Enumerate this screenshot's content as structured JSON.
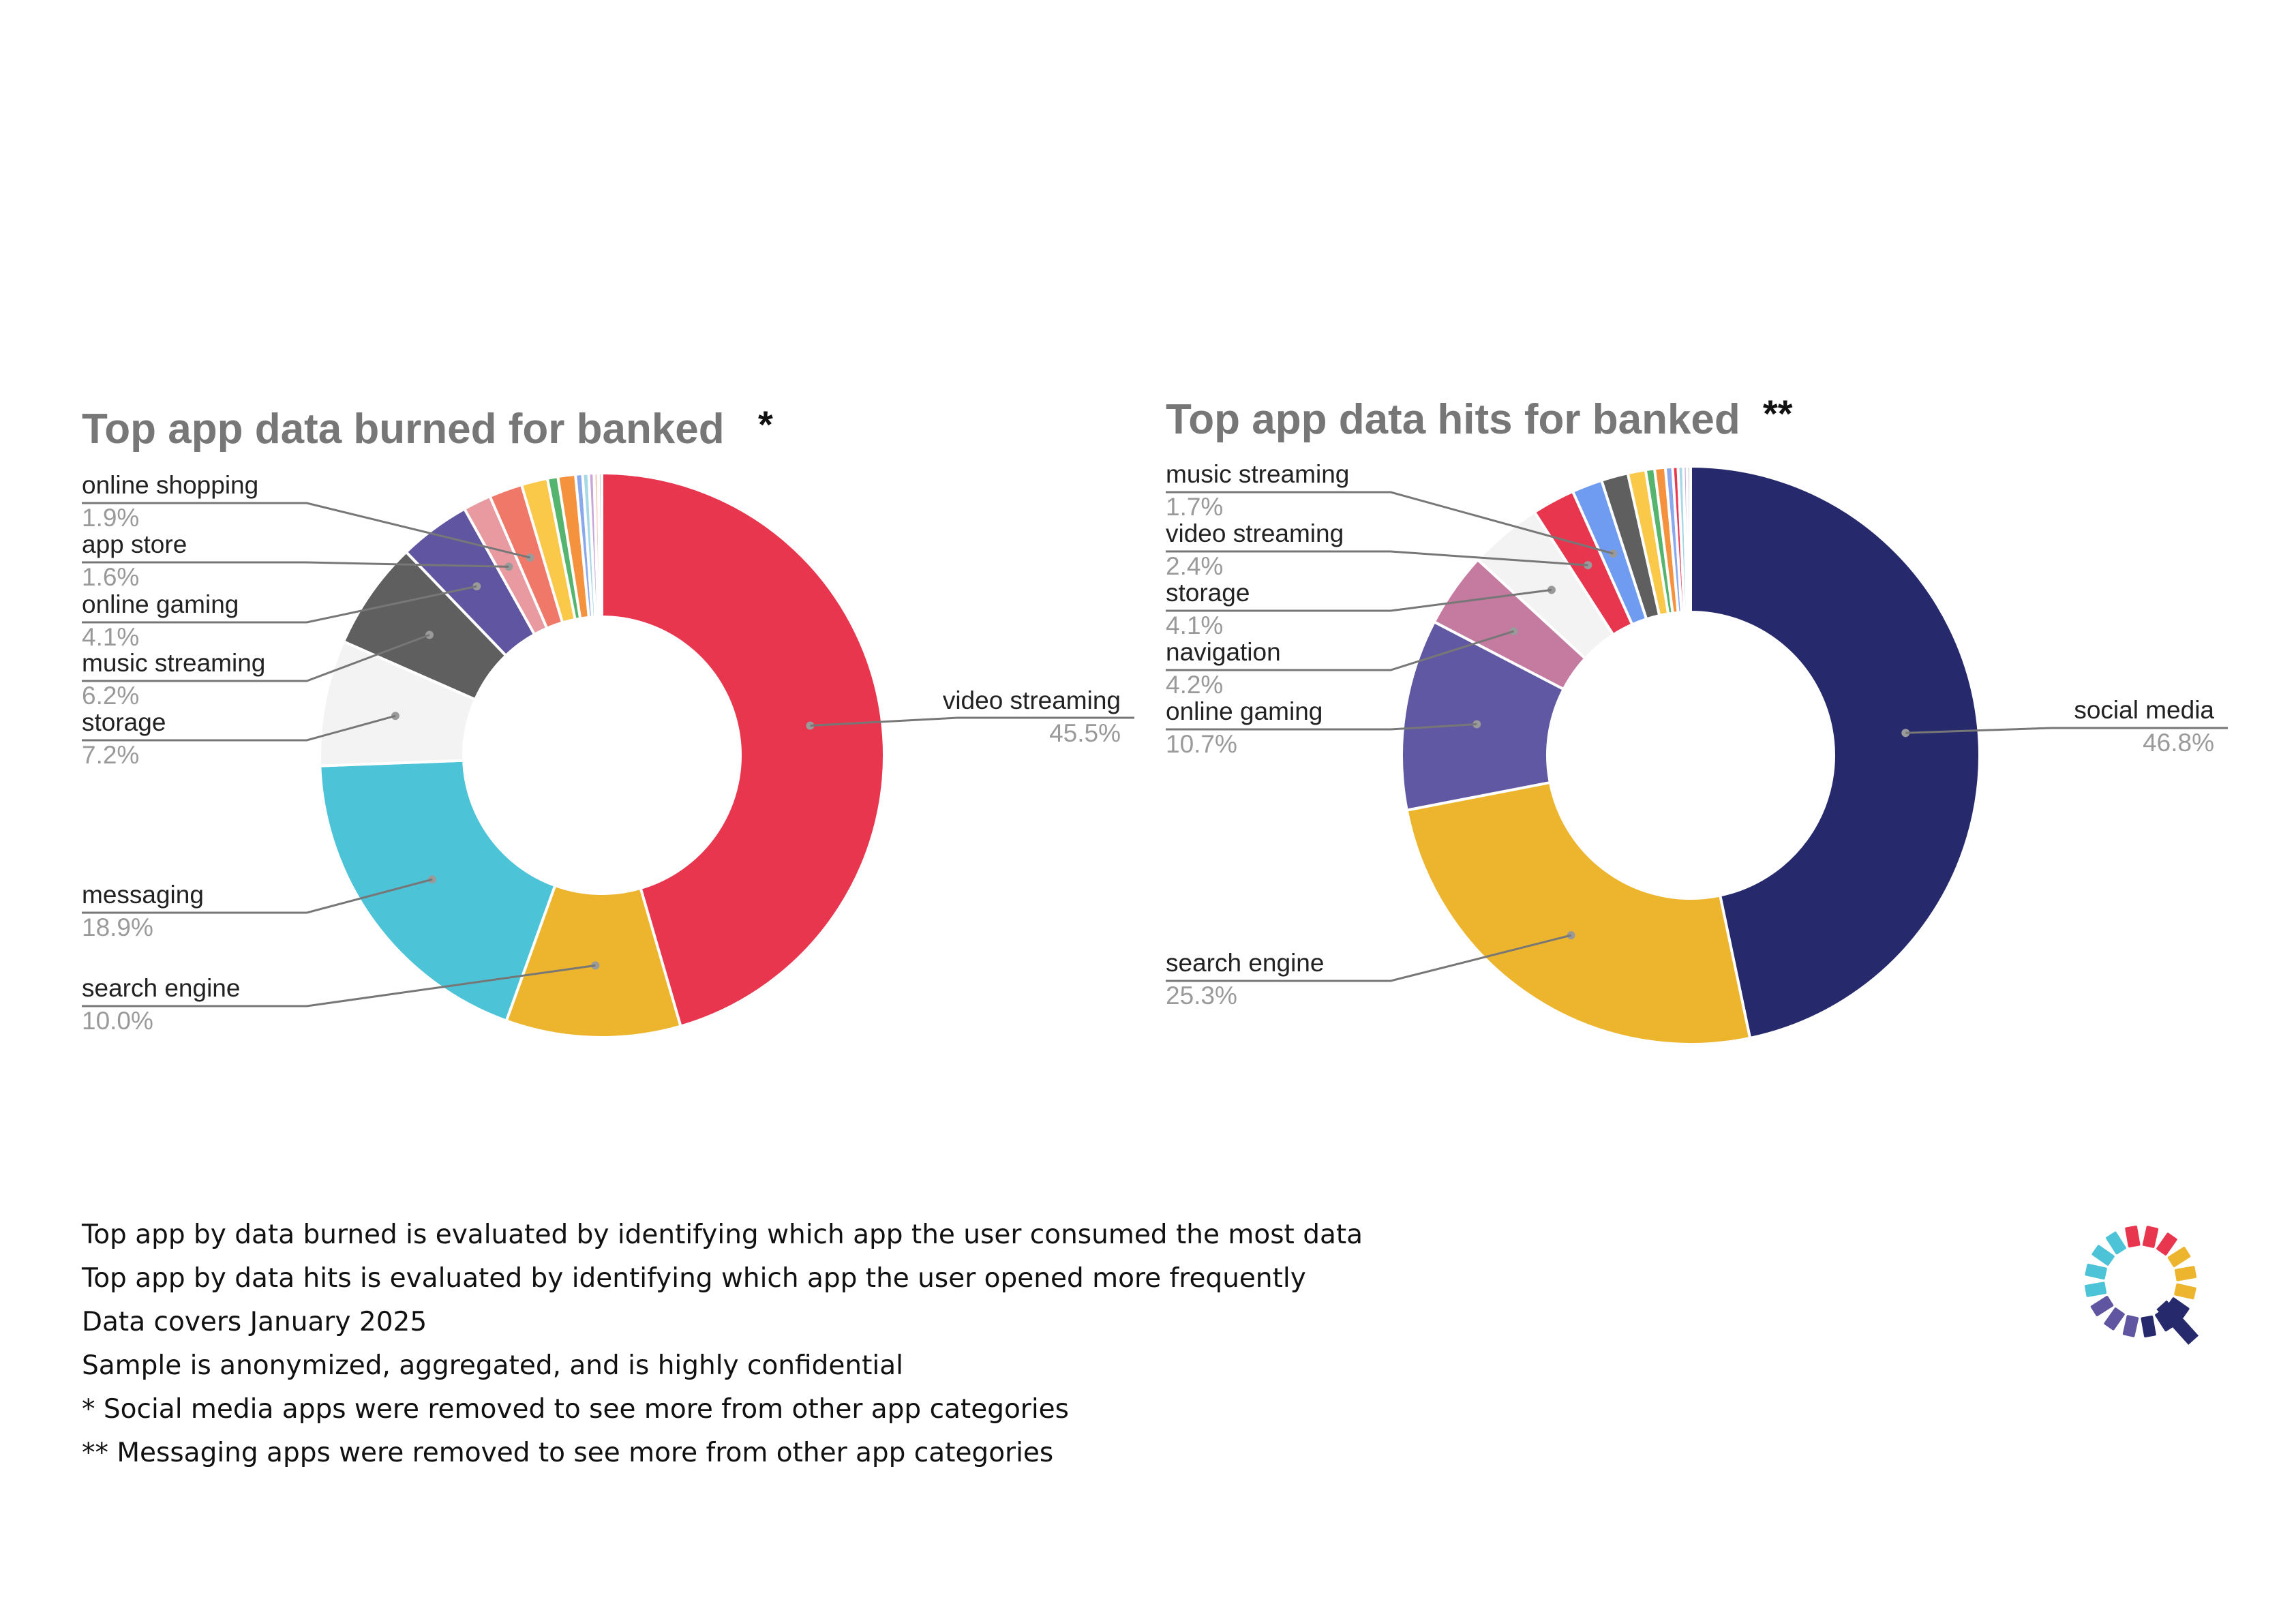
{
  "chart_data": [
    {
      "type": "pie",
      "donut": true,
      "title": "Top app data burned for banked",
      "title_mark": "*",
      "labelled_slices": [
        {
          "label": "video streaming",
          "value": 45.5,
          "value_text": "45.5%",
          "color": "#e8364f"
        },
        {
          "label": "search engine",
          "value": 10.0,
          "value_text": "10.0%",
          "color": "#edb52d"
        },
        {
          "label": "messaging",
          "value": 18.9,
          "value_text": "18.9%",
          "color": "#4cc3d7"
        },
        {
          "label": "storage",
          "value": 7.2,
          "value_text": "7.2%",
          "color": "#f3f3f3"
        },
        {
          "label": "music streaming",
          "value": 6.2,
          "value_text": "6.2%",
          "color": "#5f5f5f"
        },
        {
          "label": "online gaming",
          "value": 4.1,
          "value_text": "4.1%",
          "color": "#5f55a0"
        },
        {
          "label": "app store",
          "value": 1.6,
          "value_text": "1.6%",
          "color": "#e89aa0"
        },
        {
          "label": "online shopping",
          "value": 1.9,
          "value_text": "1.9%",
          "color": "#f07868"
        }
      ],
      "unlabelled_slices": [
        {
          "value": 1.5,
          "color": "#fbc94a"
        },
        {
          "value": 0.6,
          "color": "#55b46e"
        },
        {
          "value": 1.0,
          "color": "#f5923e"
        },
        {
          "value": 0.4,
          "color": "#8aa9ec"
        },
        {
          "value": 0.35,
          "color": "#a6d8e6"
        },
        {
          "value": 0.3,
          "color": "#c9a6d9"
        },
        {
          "value": 0.25,
          "color": "#f7d2c0"
        },
        {
          "value": 0.2,
          "color": "#cfcfcf"
        }
      ]
    },
    {
      "type": "pie",
      "donut": true,
      "title": "Top app data hits for banked",
      "title_mark": "**",
      "labelled_slices": [
        {
          "label": "social media",
          "value": 46.8,
          "value_text": "46.8%",
          "color": "#262a6c"
        },
        {
          "label": "search engine",
          "value": 25.3,
          "value_text": "25.3%",
          "color": "#edb52d"
        },
        {
          "label": "online gaming",
          "value": 10.7,
          "value_text": "10.7%",
          "color": "#6058a3"
        },
        {
          "label": "navigation",
          "value": 4.2,
          "value_text": "4.2%",
          "color": "#c57aa0"
        },
        {
          "label": "storage",
          "value": 4.1,
          "value_text": "4.1%",
          "color": "#f3f3f3"
        },
        {
          "label": "video streaming",
          "value": 2.4,
          "value_text": "2.4%",
          "color": "#e8364f"
        },
        {
          "label": "music streaming",
          "value": 1.7,
          "value_text": "1.7%",
          "color": "#6f9cf0"
        }
      ],
      "unlabelled_slices": [
        {
          "value": 1.5,
          "color": "#5f5f5f"
        },
        {
          "value": 1.0,
          "color": "#fbc94a"
        },
        {
          "value": 0.5,
          "color": "#55b46e"
        },
        {
          "value": 0.6,
          "color": "#f5923e"
        },
        {
          "value": 0.4,
          "color": "#8aa9ec"
        },
        {
          "value": 0.3,
          "color": "#e8364f"
        },
        {
          "value": 0.3,
          "color": "#a6d8e6"
        },
        {
          "value": 0.2,
          "color": "#c9a6d9"
        },
        {
          "value": 0.2,
          "color": "#cfcfcf"
        }
      ]
    }
  ],
  "notes": [
    "Top app by data burned is evaluated by identifying which app the user consumed the most data",
    "Top app by data hits is evaluated by identifying which app the user opened more frequently",
    "Data covers January 2025",
    "Sample is anonymized, aggregated, and is highly confidential",
    "* Social media apps were removed to see more from other app categories",
    "** Messaging apps were removed to see more from other app categories"
  ],
  "logo": {
    "icon": "circular-bars-logo-icon",
    "colors": [
      "#e8364f",
      "#edb52d",
      "#262a6c",
      "#5f55a0",
      "#4cc3d7"
    ]
  }
}
